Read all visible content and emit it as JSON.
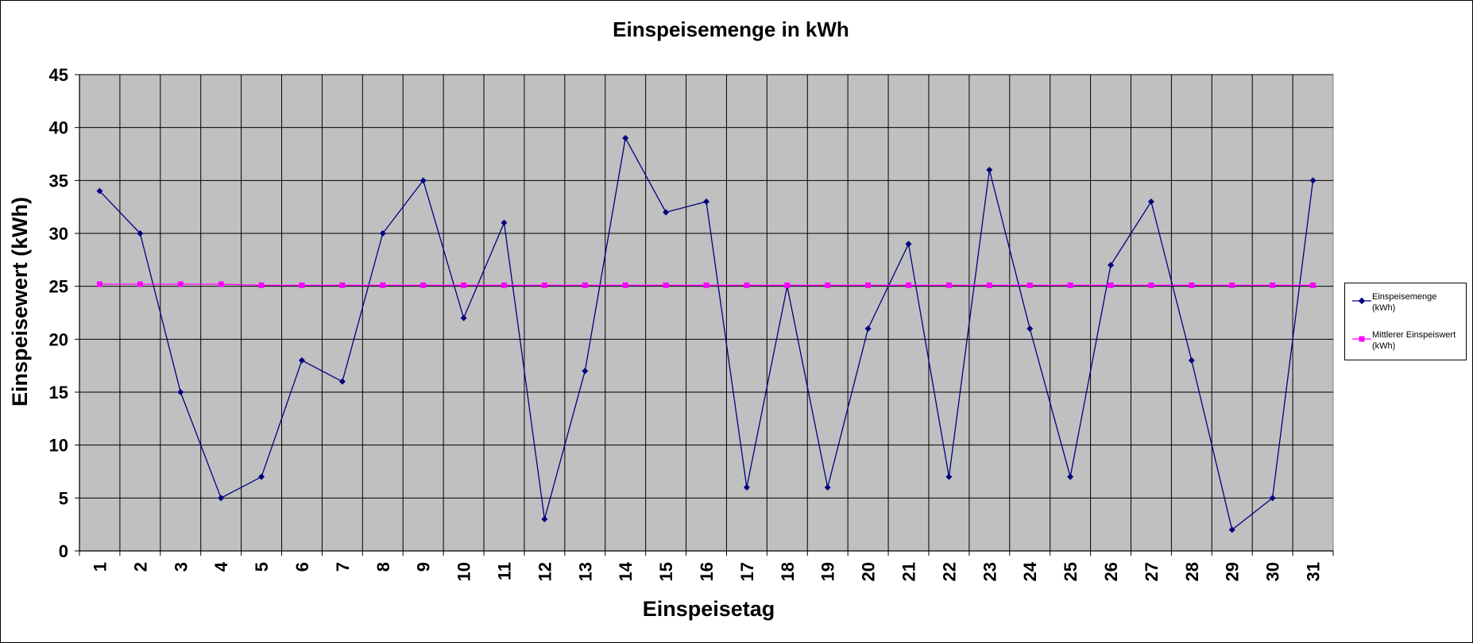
{
  "chart_data": {
    "type": "line",
    "title": "Einspeisemenge in kWh",
    "xlabel": "Einspeisetag",
    "ylabel": "Einspeisewert  (kWh)",
    "x": [
      1,
      2,
      3,
      4,
      5,
      6,
      7,
      8,
      9,
      10,
      11,
      12,
      13,
      14,
      15,
      16,
      17,
      18,
      19,
      20,
      21,
      22,
      23,
      24,
      25,
      26,
      27,
      28,
      29,
      30,
      31
    ],
    "ylim": [
      0,
      45
    ],
    "yticks": [
      0,
      5,
      10,
      15,
      20,
      25,
      30,
      35,
      40,
      45
    ],
    "grid": true,
    "plot_background": "#c0c0c0",
    "legend_position": "right",
    "series": [
      {
        "name": "Einspeisemenge (kWh)",
        "legend_lines": [
          "Einspeisemenge",
          "(kWh)"
        ],
        "color": "#000080",
        "marker": "diamond",
        "values": [
          34,
          30,
          15,
          5,
          7,
          18,
          16,
          30,
          35,
          22,
          31,
          3,
          17,
          39,
          32,
          33,
          6,
          25,
          6,
          21,
          29,
          7,
          36,
          21,
          7,
          27,
          33,
          18,
          2,
          5,
          35
        ]
      },
      {
        "name": "Mittlerer Einspeiswert (kWh)",
        "legend_lines": [
          "Mittlerer Einspeiswert",
          "(kWh)"
        ],
        "color": "#ff00ff",
        "marker": "square",
        "values": [
          25.2,
          25.2,
          25.2,
          25.2,
          25.1,
          25.1,
          25.1,
          25.1,
          25.1,
          25.1,
          25.1,
          25.1,
          25.1,
          25.1,
          25.1,
          25.1,
          25.1,
          25.1,
          25.1,
          25.1,
          25.1,
          25.1,
          25.1,
          25.1,
          25.1,
          25.1,
          25.1,
          25.1,
          25.1,
          25.1,
          25.1
        ]
      }
    ]
  }
}
